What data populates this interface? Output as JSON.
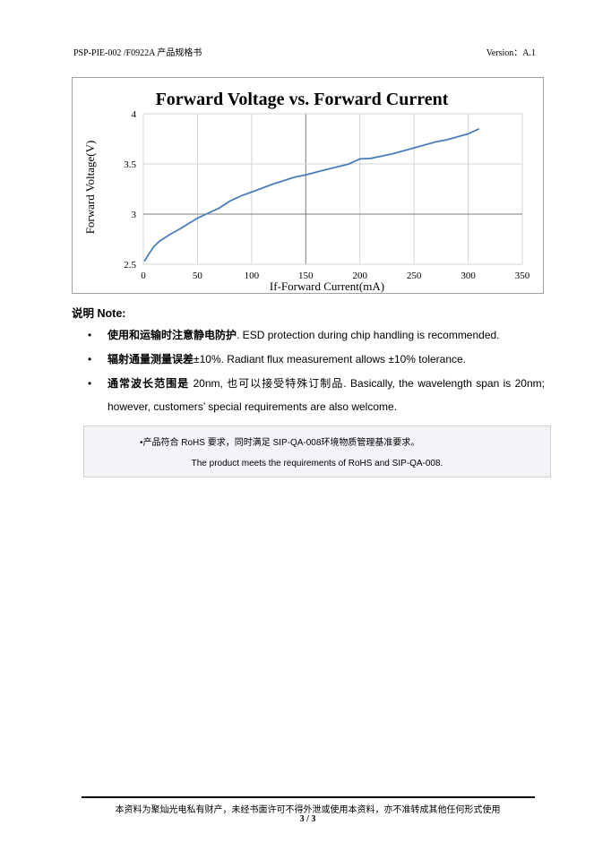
{
  "header": {
    "doc_id": "PSP-PIE-002 /F0922A 产品规格书",
    "version": "Version：A.1"
  },
  "chart_data": {
    "type": "line",
    "title": "Forward Voltage vs. Forward Current",
    "xlabel": "If-Forward Current(mA)",
    "ylabel": "Forward Voltage(V)",
    "xlim": [
      0,
      350
    ],
    "ylim": [
      2.5,
      4
    ],
    "xticks": [
      "0",
      "50",
      "100",
      "150",
      "200",
      "250",
      "300",
      "350"
    ],
    "yticks": [
      "2.5",
      "3",
      "3.5",
      "4"
    ],
    "grid": true,
    "line_color": "#4a7ebb",
    "x": [
      1,
      5,
      10,
      15,
      25,
      35,
      50,
      60,
      70,
      80,
      90,
      100,
      120,
      140,
      150,
      160,
      175,
      190,
      200,
      210,
      230,
      250,
      270,
      280,
      300,
      310
    ],
    "y": [
      2.53,
      2.6,
      2.68,
      2.73,
      2.8,
      2.86,
      2.96,
      3.01,
      3.06,
      3.13,
      3.18,
      3.22,
      3.3,
      3.37,
      3.39,
      3.42,
      3.46,
      3.5,
      3.55,
      3.555,
      3.6,
      3.66,
      3.72,
      3.74,
      3.8,
      3.85
    ]
  },
  "notes": {
    "heading_cn": "说明",
    "heading_en": "Note:",
    "items": [
      {
        "cn": "使用和运输时注意静电防护",
        "en": ". ESD protection during chip handling is recommended."
      },
      {
        "cn": "辐射通量测量误差",
        "en": "±10%. Radiant flux measurement allows ±10% tolerance."
      },
      {
        "cn": "通常波长范围是",
        "en": " 20nm, 也可以接受特殊订制品. Basically, the wavelength span is 20nm; however, customers’ special requirements are also welcome."
      }
    ],
    "bullet": "•"
  },
  "rohs": {
    "line_cn": "•产品符合 RoHS 要求，同时满足 SIP-QA-008环境物质管理基准要求。",
    "line_en": "The product meets the requirements of RoHS and SIP-QA-008."
  },
  "footer": {
    "notice": "本资料为聚灿光电私有财产，未经书面许可不得外泄或使用本资料，亦不准转成其他任何形式使用",
    "page": "3 / 3"
  }
}
